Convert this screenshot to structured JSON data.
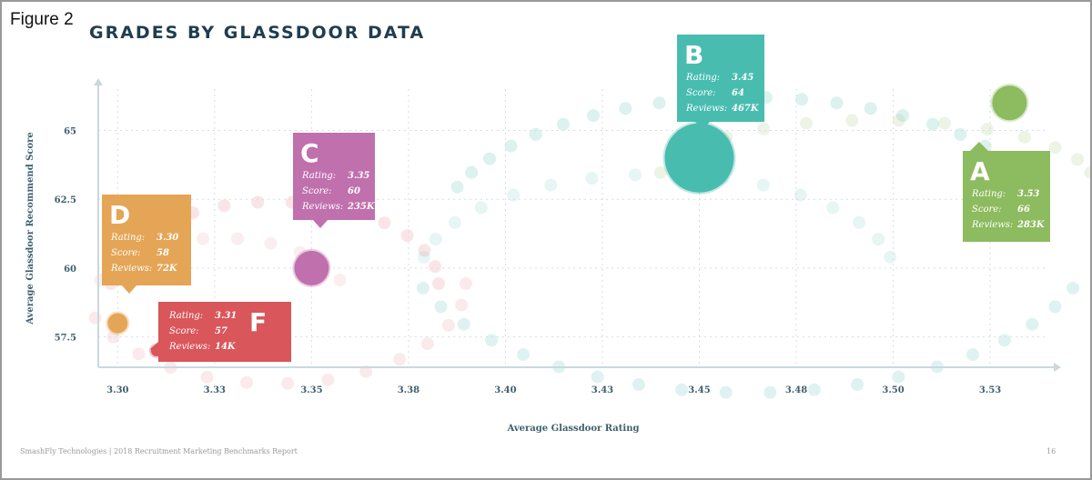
{
  "figure_label": "Figure 2",
  "footer": {
    "left": "SmashFly Technologies | 2018 Recruitment Marketing Benchmarks Report",
    "page": "16"
  },
  "chart_data": {
    "type": "scatter",
    "title": "GRADES BY GLASSDOOR DATA",
    "xlabel": "Average Glassdoor Rating",
    "ylabel": "Average Glassdoor Recommend Score",
    "x_ticks": [
      "3.30",
      "3.33",
      "3.35",
      "3.38",
      "3.40",
      "3.43",
      "3.45",
      "3.48",
      "3.50",
      "3.53"
    ],
    "x_tick_values": [
      3.3,
      3.325,
      3.35,
      3.375,
      3.4,
      3.425,
      3.45,
      3.475,
      3.5,
      3.525
    ],
    "y_ticks": [
      "57.5",
      "60",
      "62.5",
      "65"
    ],
    "y_tick_values": [
      57.5,
      60,
      62.5,
      65
    ],
    "xlim": [
      3.295,
      3.54
    ],
    "ylim": [
      56.4,
      66.5
    ],
    "grid": true,
    "labels": {
      "rating": "Rating:",
      "score": "Score:",
      "reviews": "Reviews:"
    },
    "points": [
      {
        "grade": "A",
        "rating": "3.53",
        "score": "66",
        "reviews": "283K",
        "x": 3.53,
        "y": 66,
        "color": "#8dbb5f"
      },
      {
        "grade": "B",
        "rating": "3.45",
        "score": "64",
        "reviews": "467K",
        "x": 3.45,
        "y": 64,
        "color": "#49bcb0"
      },
      {
        "grade": "C",
        "rating": "3.35",
        "score": "60",
        "reviews": "235K",
        "x": 3.35,
        "y": 60,
        "color": "#c070ad"
      },
      {
        "grade": "D",
        "rating": "3.30",
        "score": "58",
        "reviews": "72K",
        "x": 3.3,
        "y": 58,
        "color": "#e5a556"
      },
      {
        "grade": "F",
        "rating": "3.31",
        "score": "57",
        "reviews": "14K",
        "x": 3.31,
        "y": 57,
        "color": "#d9565a"
      }
    ]
  }
}
